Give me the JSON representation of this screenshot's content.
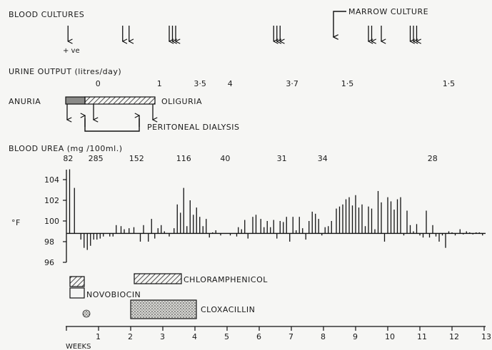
{
  "labels": {
    "blood_cultures": "BLOOD CULTURES",
    "positive": "+ ve",
    "marrow_culture": "MARROW CULTURE",
    "urine_output": "URINE OUTPUT (litres/day)",
    "anuria": "ANURIA",
    "oliguria": "OLIGURIA",
    "peritoneal_dialysis": "PERITONEAL DIALYSIS",
    "blood_urea": "BLOOD UREA (mg /100ml.)",
    "temp_unit": "°F",
    "weeks": "WEEKS",
    "novobiocin": "NOVOBIOCIN",
    "chloramphenicol": "CHLORAMPHENICOL",
    "cloxacillin": "CLOXACILLIN"
  },
  "urine_output": [
    {
      "week": 0.3,
      "label": "0"
    },
    {
      "week": 1.3,
      "label": "1"
    },
    {
      "week": 1.9,
      "label": "3·5"
    },
    {
      "week": 2.45,
      "label": "4"
    },
    {
      "week": 3.4,
      "label": "3·7"
    },
    {
      "week": 4.3,
      "label": "1·5"
    },
    {
      "week": 5.95,
      "label": "1·5"
    }
  ],
  "blood_urea": [
    {
      "week": 0.05,
      "label": "82"
    },
    {
      "week": 0.45,
      "label": "285"
    },
    {
      "week": 1.1,
      "label": "152"
    },
    {
      "week": 1.85,
      "label": "116"
    },
    {
      "week": 2.55,
      "label": "40"
    },
    {
      "week": 3.45,
      "label": "31"
    },
    {
      "week": 4.1,
      "label": "34"
    },
    {
      "week": 5.85,
      "label": "28"
    }
  ],
  "chart_data": {
    "type": "bar",
    "xlabel": "WEEKS",
    "ylabel": "°F",
    "xlim": [
      0,
      13
    ],
    "ylim": [
      96,
      105
    ],
    "baseline": 98.8,
    "x_ticks": [
      "1",
      "2",
      "3",
      "4",
      "5",
      "6",
      "7",
      "8",
      "9",
      "10",
      "11",
      "12",
      "13"
    ],
    "y_ticks": [
      "104",
      "102",
      "100",
      "98",
      "96"
    ],
    "series": [
      {
        "values": [
          [
            0.1,
            105
          ],
          [
            0.25,
            103.2
          ],
          [
            0.45,
            98.2
          ],
          [
            0.55,
            97.4
          ],
          [
            0.65,
            97.2
          ],
          [
            0.75,
            97.6
          ],
          [
            0.85,
            98.2
          ],
          [
            0.95,
            98.2
          ],
          [
            1.05,
            98.3
          ],
          [
            1.15,
            98.5
          ],
          [
            1.35,
            98.5
          ],
          [
            1.45,
            98.5
          ],
          [
            1.55,
            99.6
          ],
          [
            1.7,
            99.5
          ],
          [
            1.8,
            99.2
          ],
          [
            1.95,
            99.3
          ],
          [
            2.1,
            99.4
          ],
          [
            2.3,
            98.0
          ],
          [
            2.4,
            99.6
          ],
          [
            2.55,
            98.0
          ],
          [
            2.65,
            100.2
          ],
          [
            2.75,
            98.3
          ],
          [
            2.85,
            99.3
          ],
          [
            2.95,
            99.6
          ],
          [
            3.05,
            99.0
          ],
          [
            3.2,
            98.5
          ],
          [
            3.35,
            99.3
          ],
          [
            3.45,
            101.6
          ],
          [
            3.55,
            100.8
          ],
          [
            3.65,
            103.2
          ],
          [
            3.75,
            99.5
          ],
          [
            3.85,
            102.0
          ],
          [
            3.95,
            100.6
          ],
          [
            4.05,
            101.3
          ],
          [
            4.15,
            100.4
          ],
          [
            4.25,
            99.5
          ],
          [
            4.35,
            100.2
          ],
          [
            4.45,
            98.4
          ],
          [
            4.55,
            98.9
          ],
          [
            4.65,
            99.1
          ],
          [
            4.8,
            98.6
          ],
          [
            5.1,
            98.6
          ],
          [
            5.3,
            98.5
          ],
          [
            5.35,
            99.4
          ],
          [
            5.45,
            99.2
          ],
          [
            5.55,
            100.1
          ],
          [
            5.65,
            98.3
          ],
          [
            5.8,
            100.4
          ],
          [
            5.9,
            100.6
          ],
          [
            6.05,
            100.2
          ],
          [
            6.15,
            99.4
          ],
          [
            6.25,
            100.0
          ],
          [
            6.35,
            99.4
          ],
          [
            6.45,
            100.1
          ],
          [
            6.55,
            98.3
          ],
          [
            6.65,
            100.0
          ],
          [
            6.75,
            99.9
          ],
          [
            6.85,
            100.4
          ],
          [
            6.95,
            98.0
          ],
          [
            7.05,
            100.4
          ],
          [
            7.15,
            99.1
          ],
          [
            7.25,
            100.4
          ],
          [
            7.35,
            99.3
          ],
          [
            7.45,
            98.2
          ],
          [
            7.55,
            100.0
          ],
          [
            7.65,
            100.9
          ],
          [
            7.75,
            100.7
          ],
          [
            7.85,
            100.2
          ],
          [
            7.95,
            98.6
          ],
          [
            8.05,
            99.4
          ],
          [
            8.15,
            99.5
          ],
          [
            8.25,
            100.0
          ],
          [
            8.4,
            101.2
          ],
          [
            8.5,
            101.4
          ],
          [
            8.6,
            101.6
          ],
          [
            8.7,
            102.1
          ],
          [
            8.8,
            102.3
          ],
          [
            8.9,
            101.5
          ],
          [
            9.0,
            102.5
          ],
          [
            9.1,
            101.3
          ],
          [
            9.2,
            101.6
          ],
          [
            9.3,
            99.5
          ],
          [
            9.4,
            101.4
          ],
          [
            9.5,
            101.2
          ],
          [
            9.6,
            99.2
          ],
          [
            9.7,
            102.9
          ],
          [
            9.8,
            101.8
          ],
          [
            9.9,
            98.0
          ],
          [
            10.0,
            102.3
          ],
          [
            10.1,
            101.9
          ],
          [
            10.2,
            101.1
          ],
          [
            10.3,
            102.1
          ],
          [
            10.4,
            102.3
          ],
          [
            10.5,
            98.6
          ],
          [
            10.6,
            101.0
          ],
          [
            10.7,
            99.6
          ],
          [
            10.8,
            99.0
          ],
          [
            10.9,
            99.7
          ],
          [
            11.0,
            98.6
          ],
          [
            11.1,
            98.4
          ],
          [
            11.2,
            101.0
          ],
          [
            11.3,
            98.4
          ],
          [
            11.4,
            99.6
          ],
          [
            11.5,
            98.5
          ],
          [
            11.6,
            98.0
          ],
          [
            11.7,
            98.6
          ],
          [
            11.8,
            97.4
          ],
          [
            11.9,
            99.0
          ],
          [
            12.0,
            98.9
          ],
          [
            12.1,
            98.6
          ],
          [
            12.25,
            99.2
          ],
          [
            12.35,
            98.7
          ],
          [
            12.45,
            99.0
          ],
          [
            12.55,
            98.9
          ],
          [
            12.65,
            98.7
          ],
          [
            12.75,
            98.9
          ],
          [
            12.85,
            98.9
          ],
          [
            12.95,
            98.6
          ]
        ]
      }
    ],
    "blood_culture_events": [
      {
        "week": 0.05,
        "positive": true
      },
      {
        "week": 1.75
      },
      {
        "week": 1.95
      },
      {
        "week": 3.2
      },
      {
        "week": 3.3
      },
      {
        "week": 3.4
      },
      {
        "week": 6.45
      },
      {
        "week": 6.55
      },
      {
        "week": 6.65
      },
      {
        "week": 9.4
      },
      {
        "week": 9.5
      },
      {
        "week": 9.8
      },
      {
        "week": 10.7
      },
      {
        "week": 10.8
      },
      {
        "week": 10.9
      }
    ],
    "marrow_culture_week": 8.0,
    "anuria_weeks": [
      0.0,
      2.2
    ],
    "dialysis_weeks": [
      0.6,
      2.2
    ],
    "oliguria_arrows_weeks": [
      0.0,
      0.8
    ],
    "treatments": [
      {
        "name": "novobiocin",
        "start_week": 0.1,
        "end_week": 0.7
      },
      {
        "name": "chloramphenicol",
        "start_week": 2.15,
        "end_week": 3.5
      },
      {
        "name": "cloxacillin",
        "start_week": 2.0,
        "end_week": 4.1
      }
    ]
  }
}
